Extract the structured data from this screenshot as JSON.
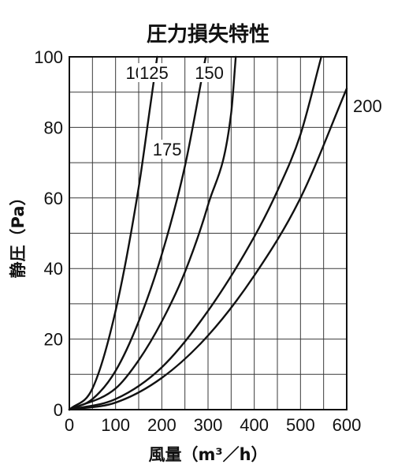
{
  "chart_data": {
    "type": "line",
    "title": "圧力損失特性",
    "xlabel": "風量（m³／h）",
    "ylabel": "静圧（Pa）",
    "xlim": [
      0,
      600
    ],
    "ylim": [
      0,
      100
    ],
    "xticks": [
      "0",
      "100",
      "200",
      "300",
      "400",
      "500",
      "600"
    ],
    "yticks": [
      "0",
      "20",
      "40",
      "60",
      "80",
      "100"
    ],
    "grid": true,
    "grid_x_step": 50,
    "grid_y_step": 10,
    "series": [
      {
        "name": "100",
        "x": [
          0,
          50,
          100,
          150,
          175,
          190
        ],
        "y": [
          0,
          6,
          28,
          63,
          86,
          100
        ]
      },
      {
        "name": "125",
        "x": [
          0,
          50,
          100,
          150,
          200,
          250,
          295
        ],
        "y": [
          0,
          3,
          11,
          25,
          44,
          69,
          100
        ]
      },
      {
        "name": "150",
        "x": [
          0,
          100,
          150,
          200,
          250,
          300,
          350,
          360
        ],
        "y": [
          0,
          6,
          14,
          25,
          39,
          58,
          84,
          100
        ]
      },
      {
        "name": "175",
        "x": [
          0,
          100,
          200,
          300,
          400,
          450,
          500,
          545
        ],
        "y": [
          0,
          3,
          12,
          28,
          49,
          62,
          78,
          100
        ]
      },
      {
        "name": "200",
        "x": [
          0,
          100,
          200,
          300,
          400,
          500,
          600
        ],
        "y": [
          0,
          2,
          9,
          21,
          38,
          60,
          91
        ]
      }
    ]
  }
}
